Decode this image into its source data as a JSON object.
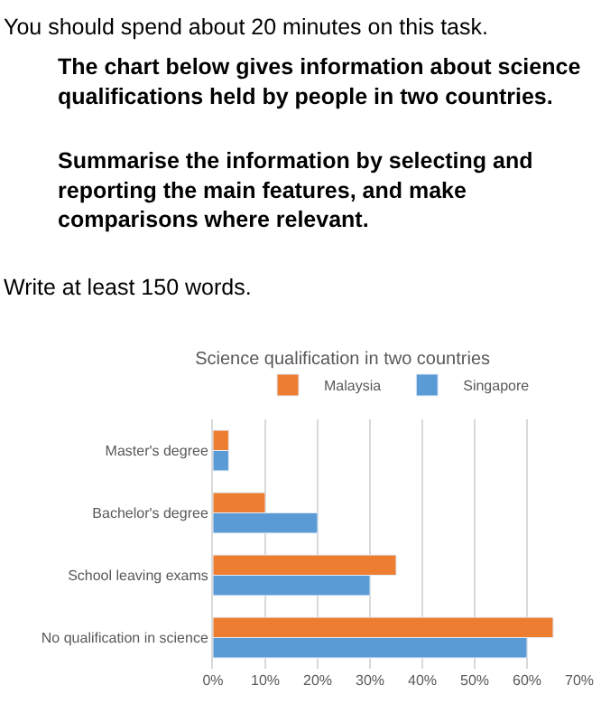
{
  "chart_data": {
    "type": "bar",
    "orientation": "horizontal",
    "title": "Science qualification in two countries",
    "annotations": [
      "You should spend about 20 minutes on this task.",
      "The chart below gives information about science\nqualifications held by people in two countries.",
      "Summarise the information by selecting and\nreporting the main features, and make\ncomparisons where relevant.",
      "Write at least 150 words."
    ],
    "categories": [
      "Master's degree",
      "Bachelor's degree",
      "School leaving exams",
      "No qualification in science"
    ],
    "series": [
      {
        "name": "Malaysia",
        "color": "#ed7d31",
        "values": [
          3,
          10,
          35,
          65
        ]
      },
      {
        "name": "Singapore",
        "color": "#5b9bd5",
        "values": [
          3,
          20,
          30,
          60
        ]
      }
    ],
    "xlim": [
      0,
      70
    ],
    "xticks": [
      {
        "value": 0,
        "label": "0%"
      },
      {
        "value": 10,
        "label": "10%"
      },
      {
        "value": 20,
        "label": "20%"
      },
      {
        "value": 30,
        "label": "30%"
      },
      {
        "value": 40,
        "label": "40%"
      },
      {
        "value": 50,
        "label": "50%"
      },
      {
        "value": 60,
        "label": "60%"
      },
      {
        "value": 70,
        "label": "70%"
      }
    ],
    "grid": "x",
    "legend": "top"
  }
}
